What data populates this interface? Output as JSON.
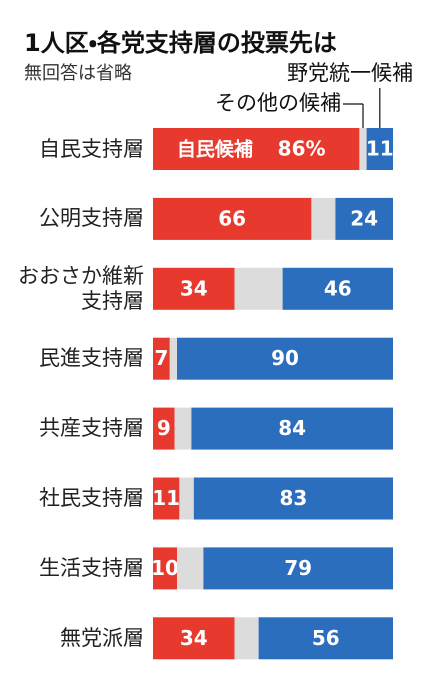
{
  "chart_data": {
    "type": "stacked-bar-horizontal",
    "title": "1人区・各党支持層の投票先は",
    "subtitle": "無回答は省略",
    "categories": [
      "自民支持層",
      "公明支持層",
      "おおさか維新支持層",
      "民進支持層",
      "共産支持層",
      "社民支持層",
      "生活支持層",
      "無党派層"
    ],
    "series": [
      {
        "name": "自民候補",
        "color": "#e8392f",
        "values": [
          86,
          66,
          34,
          7,
          9,
          11,
          10,
          34
        ],
        "value_labels": [
          "86%",
          "66",
          "34",
          "7",
          "9",
          "11",
          "10",
          "34"
        ]
      },
      {
        "name": "その他の候補",
        "color": "#dcdcdc",
        "values": [
          3,
          10,
          20,
          3,
          7,
          6,
          11,
          10
        ]
      },
      {
        "name": "野党統一候補",
        "color": "#2a6ebd",
        "values": [
          11,
          24,
          46,
          90,
          84,
          83,
          79,
          56
        ]
      }
    ],
    "xlim": [
      0,
      100
    ]
  }
}
